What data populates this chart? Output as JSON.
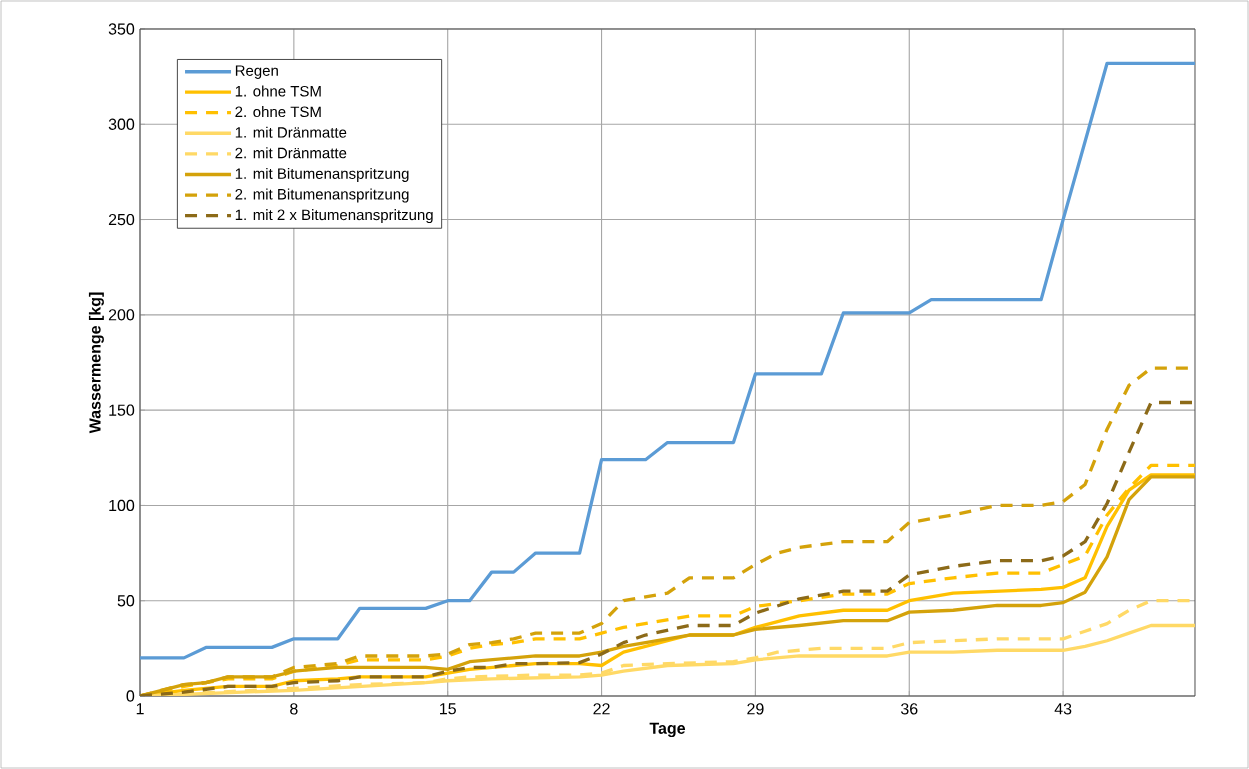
{
  "chart_data": {
    "type": "line",
    "xlabel": "Tage",
    "ylabel": "Wassermenge [kg]",
    "xlim": [
      1,
      49
    ],
    "ylim": [
      0,
      350
    ],
    "xticks": [
      1,
      8,
      15,
      22,
      29,
      36,
      43
    ],
    "yticks": [
      0,
      50,
      100,
      150,
      200,
      250,
      300,
      350
    ],
    "grid": true,
    "legend": "top left",
    "marker": "none",
    "series": [
      {
        "name": "Regen",
        "color": "#5b9bd5",
        "line_style": "solid",
        "x": [
          1,
          3,
          4,
          7,
          8,
          10,
          11,
          14,
          15,
          16,
          17,
          18,
          19,
          21,
          22,
          24,
          25,
          28,
          29,
          32,
          33,
          36,
          37,
          42,
          43,
          45,
          49
        ],
        "values": [
          20,
          20,
          25.5,
          25.5,
          30,
          30,
          46,
          46,
          50,
          50,
          65,
          65,
          75,
          75,
          124,
          124,
          133,
          133,
          169,
          169,
          201,
          201,
          208,
          208,
          250,
          332,
          332
        ]
      },
      {
        "name": "1. ohne TSM",
        "color": "#ffc000",
        "line_style": "solid",
        "x": [
          1,
          3,
          4,
          5,
          7,
          8,
          10,
          11,
          14,
          15,
          16,
          18,
          19,
          21,
          22,
          23,
          26,
          28,
          29,
          31,
          33,
          35,
          36,
          38,
          40,
          42,
          43,
          44,
          45,
          46,
          47,
          49
        ],
        "values": [
          0,
          3,
          4,
          5,
          5,
          8,
          9,
          10,
          10,
          12,
          14,
          16,
          17,
          17,
          16,
          23,
          32,
          32,
          36,
          42,
          45,
          45,
          50,
          54,
          55,
          56,
          57,
          62,
          89,
          108,
          116,
          116
        ]
      },
      {
        "name": "2. ohne TSM",
        "color": "#ffc000",
        "line_style": "dashed",
        "x": [
          1,
          3,
          4,
          5,
          7,
          8,
          10,
          11,
          14,
          15,
          16,
          17,
          18,
          19,
          21,
          22,
          23,
          26,
          28,
          29,
          31,
          33,
          35,
          36,
          38,
          40,
          42,
          43,
          44,
          45,
          46,
          47,
          49
        ],
        "values": [
          0,
          5,
          7,
          9,
          9,
          13,
          16,
          19,
          19,
          21,
          25,
          27,
          28,
          30,
          30,
          33,
          36,
          42,
          42,
          47,
          50,
          53.5,
          53.5,
          59,
          62,
          64.5,
          64.5,
          69,
          73.5,
          95,
          109,
          121,
          121
        ]
      },
      {
        "name": "1. mit Dränmatte",
        "color": "#ffd966",
        "line_style": "solid",
        "x": [
          1,
          8,
          14,
          15,
          17,
          21,
          22,
          23,
          25,
          28,
          29,
          31,
          35,
          36,
          38,
          40,
          43,
          44,
          45,
          46,
          47,
          49
        ],
        "values": [
          0,
          3,
          7,
          8,
          9,
          10,
          11,
          13,
          16,
          17,
          19,
          21,
          21,
          23,
          23,
          24,
          24,
          26,
          29,
          33,
          37,
          37
        ]
      },
      {
        "name": "2. mit Dränmatte",
        "color": "#ffd966",
        "line_style": "dashed",
        "x": [
          1,
          8,
          11,
          14,
          15,
          16,
          19,
          21,
          22,
          23,
          25,
          28,
          29,
          30,
          32,
          35,
          36,
          40,
          43,
          44,
          45,
          46,
          47,
          49
        ],
        "values": [
          0,
          4,
          6,
          7,
          9,
          10,
          11,
          11,
          12,
          16,
          17,
          18,
          20,
          23,
          25,
          25,
          28,
          30,
          30,
          34,
          38,
          45,
          50,
          50
        ]
      },
      {
        "name": "1. mit Bitumenanspritzung",
        "color": "#d4a20a",
        "line_style": "solid",
        "x": [
          1,
          3,
          4,
          5,
          7,
          8,
          10,
          11,
          14,
          15,
          16,
          18,
          19,
          21,
          22,
          23,
          26,
          28,
          29,
          31,
          33,
          35,
          36,
          38,
          40,
          42,
          43,
          44,
          45,
          46,
          47,
          49
        ],
        "values": [
          0,
          6,
          7,
          10,
          10,
          13,
          15,
          15,
          15,
          14,
          18,
          20,
          21,
          21,
          23,
          26,
          32,
          32,
          35,
          37,
          39.5,
          39.5,
          44,
          45,
          47.5,
          47.5,
          49,
          54.5,
          73,
          103,
          115,
          115
        ]
      },
      {
        "name": "2. mit Bitumenanspritzung",
        "color": "#d4a20a",
        "line_style": "dashed",
        "x": [
          1,
          3,
          4,
          5,
          7,
          8,
          10,
          11,
          14,
          15,
          16,
          17,
          18,
          19,
          21,
          22,
          23,
          25,
          26,
          28,
          29,
          30,
          31,
          33,
          35,
          36,
          38,
          40,
          42,
          43,
          44,
          45,
          46,
          47,
          49
        ],
        "values": [
          0,
          6,
          7,
          10,
          10,
          15,
          17,
          21,
          21,
          22,
          27,
          28,
          30,
          33,
          33,
          38,
          50,
          54,
          62,
          62,
          69,
          75,
          78,
          81,
          81,
          91,
          95,
          100,
          100,
          102,
          111,
          140,
          163,
          172,
          172
        ]
      },
      {
        "name": "1. mit 2 x Bitumenanspritzung",
        "color": "#8c6a18",
        "line_style": "dashed",
        "x": [
          1,
          3,
          5,
          7,
          8,
          10,
          11,
          14,
          15,
          16,
          17,
          18,
          19,
          21,
          22,
          23,
          24,
          26,
          28,
          29,
          31,
          33,
          35,
          36,
          38,
          40,
          42,
          43,
          44,
          45,
          46,
          47,
          49
        ],
        "values": [
          0,
          2,
          5,
          5,
          7,
          8,
          10,
          10,
          13,
          15,
          15,
          17,
          17,
          17.5,
          22,
          28,
          32,
          37,
          37,
          43.5,
          51,
          55,
          55,
          63.5,
          68,
          71,
          71,
          73.5,
          81,
          101,
          128,
          154,
          154
        ]
      }
    ]
  }
}
